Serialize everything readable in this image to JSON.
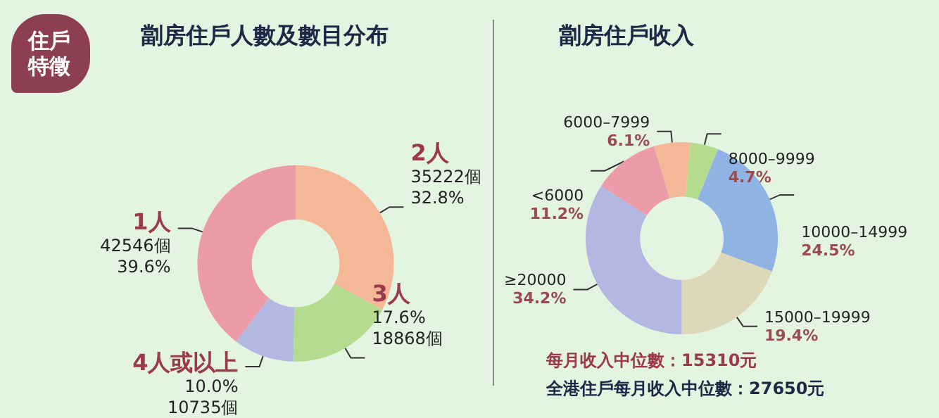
{
  "chart_data": [
    {
      "type": "donut",
      "title": "劏房住戶人數及數目分布",
      "categories": [
        "2人",
        "3人",
        "4人或以上",
        "1人"
      ],
      "values": [
        35222,
        18868,
        10735,
        42546
      ],
      "colors": [
        "#f4b896",
        "#b5dc8e",
        "#b3b8e3",
        "#ec9ba8"
      ],
      "value_labels": [
        "35222個\n32.8%",
        "17.6%\n18868個",
        "10.0%\n10735個",
        "42546個\n39.6%"
      ],
      "annotations": [
        "住戶特徵"
      ]
    },
    {
      "type": "donut",
      "title": "劏房住戶收入",
      "categories": [
        "<6000",
        "6000–7999",
        "8000–9999",
        "10000–14999",
        "15000–19999",
        "≥20000"
      ],
      "values": [
        11.2,
        6.1,
        4.7,
        24.5,
        19.4,
        34.2
      ],
      "colors": [
        "#ec9ba8",
        "#f4b896",
        "#b5dc8e",
        "#8fb3e3",
        "#ddd8b8",
        "#b3b8e3"
      ],
      "value_labels": [
        "11.2%",
        "6.1%",
        "4.7%",
        "24.5%",
        "19.4%",
        "34.2%"
      ],
      "annotations": [
        "每月收入中位數：15310元",
        "全港住戶每月收入中位數：27650元"
      ]
    }
  ]
}
